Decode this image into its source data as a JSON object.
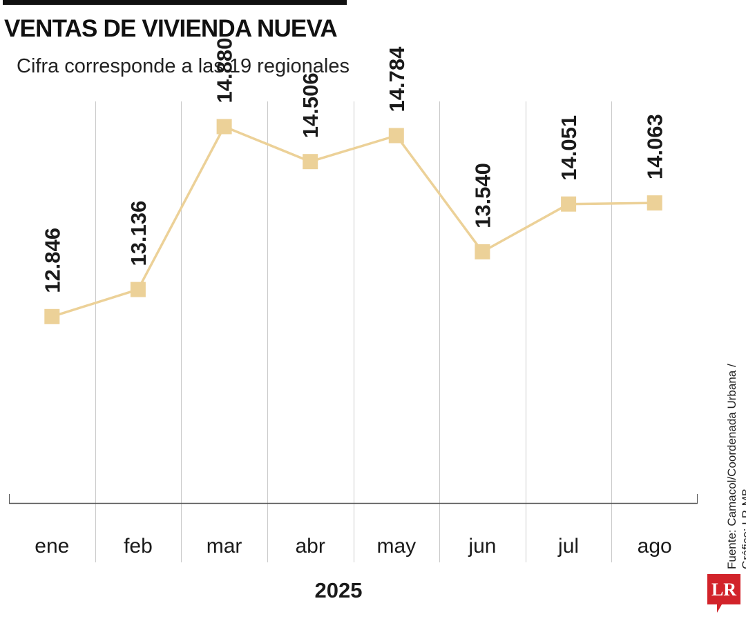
{
  "title": "VENTAS DE VIVIENDA NUEVA",
  "subtitle": "Cifra corresponde a las 19 regionales",
  "source": {
    "line1": "Fuente: Camacol/Coordenada Urbana /",
    "line2": "Gráfico: LR-MB"
  },
  "logo": {
    "text": "LR",
    "color": "#d2232a"
  },
  "colors": {
    "series": "#ecd198",
    "grid": "#c9c9c9",
    "axis": "#555555",
    "text": "#1a1a1a"
  },
  "chart_data": {
    "type": "line",
    "title": "VENTAS DE VIVIENDA NUEVA",
    "subtitle": "Cifra corresponde a las 19 regionales",
    "xlabel": "2025",
    "ylabel": "",
    "categories": [
      "ene",
      "feb",
      "mar",
      "abr",
      "may",
      "jun",
      "jul",
      "ago"
    ],
    "series": [
      {
        "values": [
          12846,
          13136,
          14880,
          14506,
          14784,
          13540,
          14051,
          14063
        ],
        "labels": [
          "12.846",
          "13.136",
          "14.880",
          "14.506",
          "14.784",
          "13.540",
          "14.051",
          "14.063"
        ],
        "marker": "square"
      }
    ],
    "ylim": [
      10850,
      15150
    ],
    "grid": "vertical",
    "legend": "none",
    "data_label_rotation": "vertical"
  }
}
